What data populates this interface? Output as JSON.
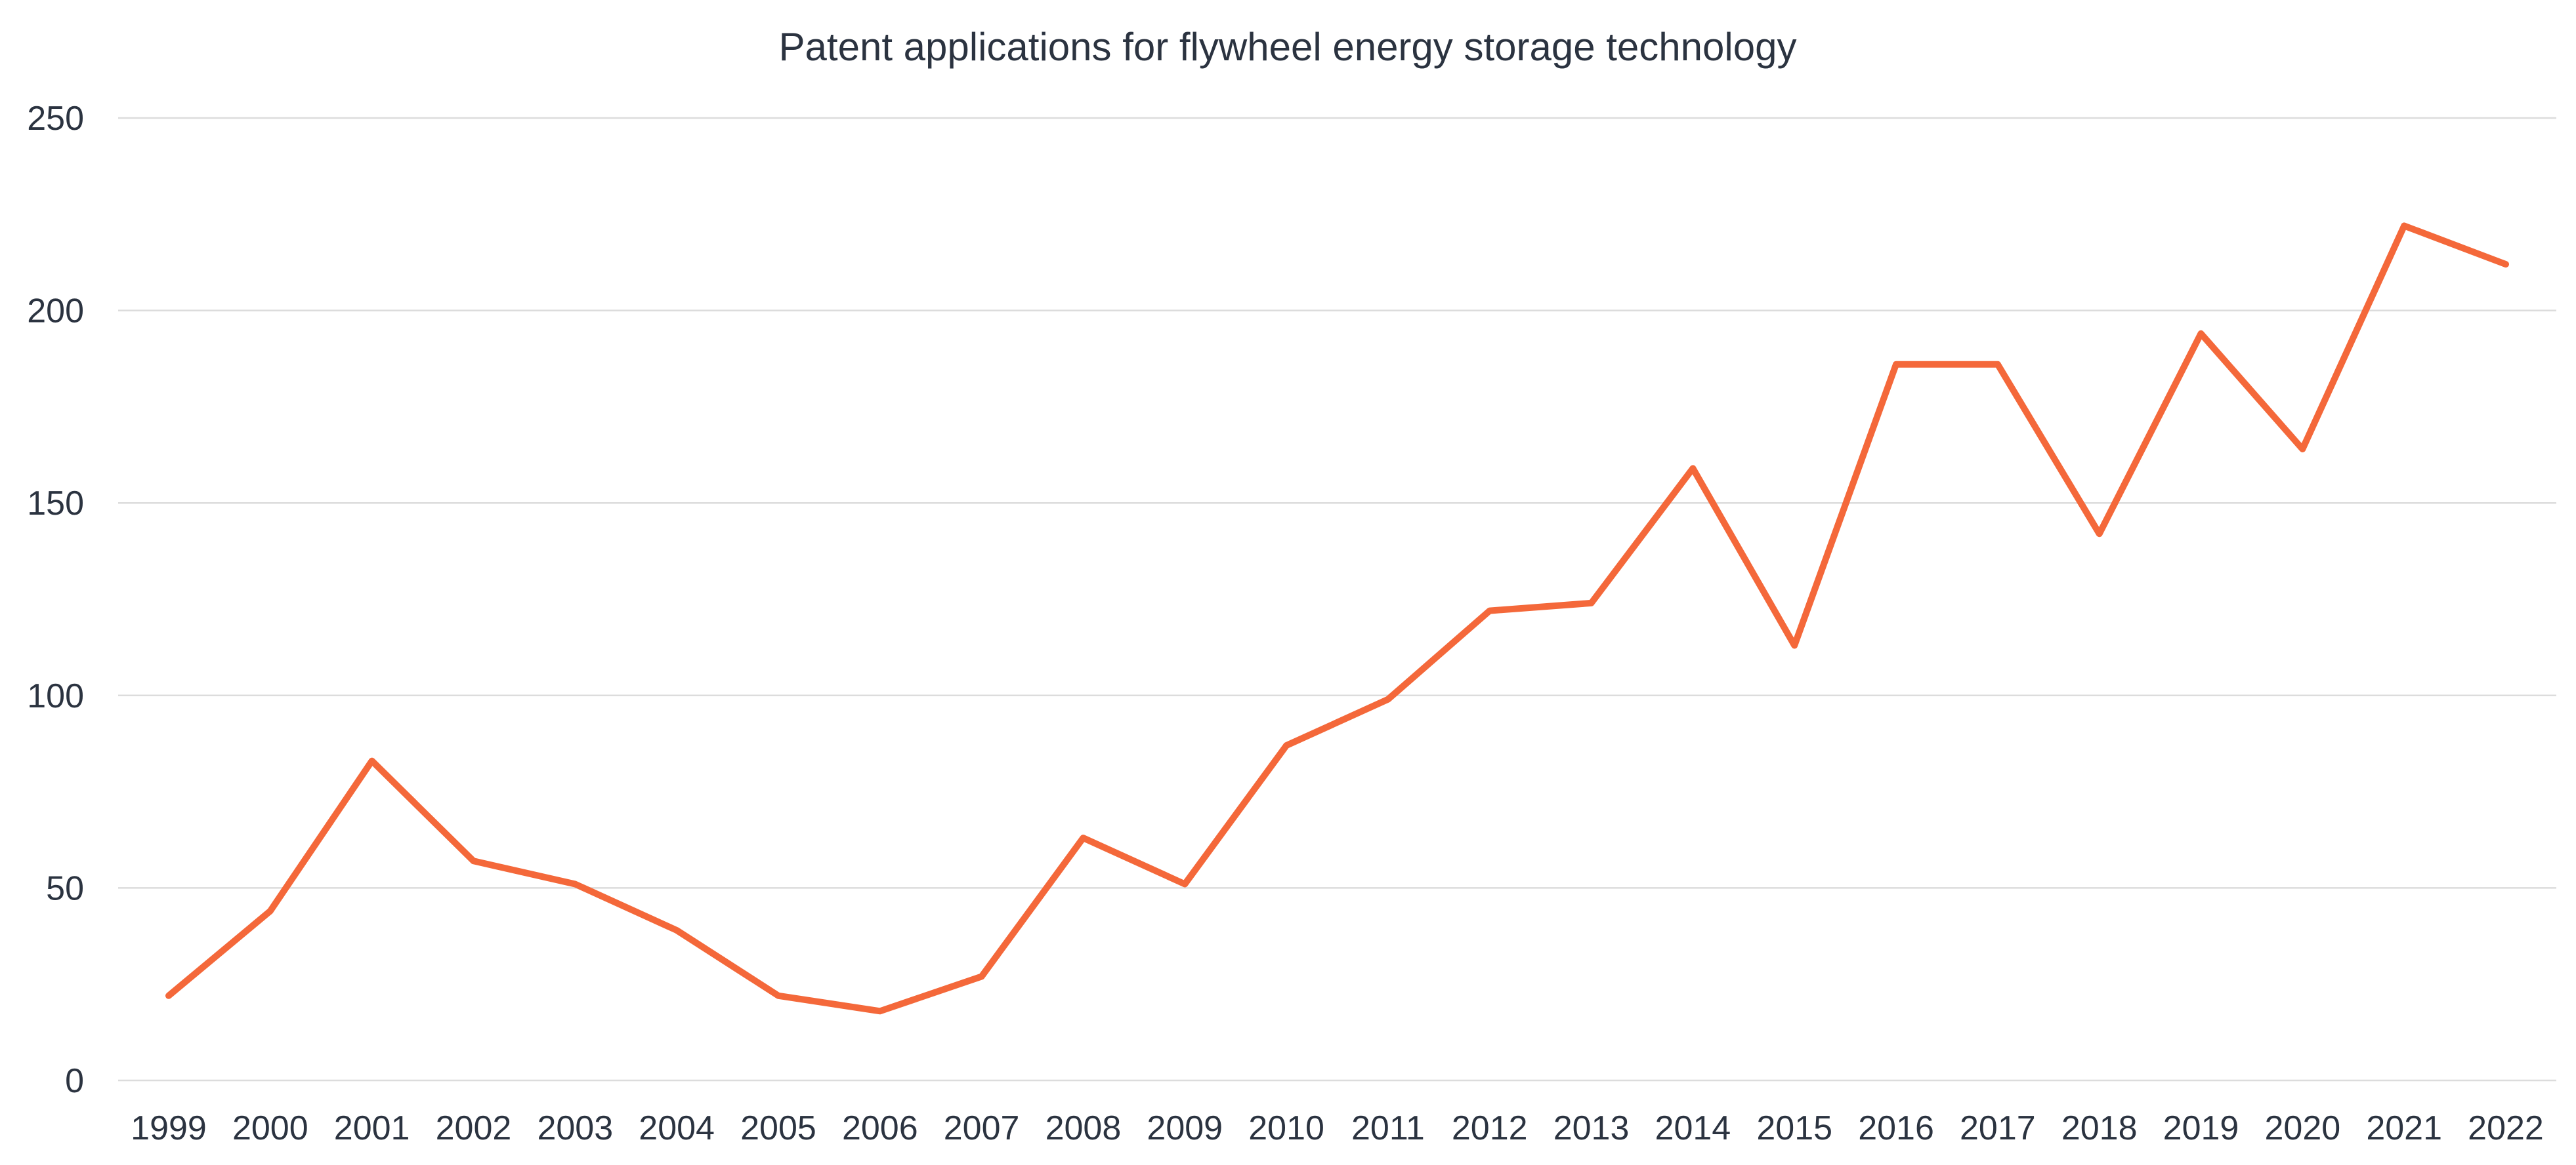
{
  "chart_data": {
    "type": "line",
    "title": "Patent applications for flywheel energy storage technology",
    "xlabel": "",
    "ylabel": "",
    "categories": [
      "1999",
      "2000",
      "2001",
      "2002",
      "2003",
      "2004",
      "2005",
      "2006",
      "2007",
      "2008",
      "2009",
      "2010",
      "2011",
      "2012",
      "2013",
      "2014",
      "2015",
      "2016",
      "2017",
      "2018",
      "2019",
      "2020",
      "2021",
      "2022"
    ],
    "series": [
      {
        "name": "Patent applications",
        "color": "#f4683a",
        "values": [
          22,
          44,
          83,
          57,
          51,
          39,
          22,
          18,
          27,
          63,
          51,
          87,
          99,
          122,
          124,
          159,
          113,
          186,
          186,
          142,
          194,
          164,
          222,
          212
        ]
      }
    ],
    "ylim": [
      0,
      250
    ],
    "yticks": [
      0,
      50,
      100,
      150,
      200,
      250
    ],
    "ytick_labels": [
      "0",
      "50",
      "100",
      "150",
      "200",
      "250"
    ],
    "grid": true,
    "legend": "none"
  }
}
